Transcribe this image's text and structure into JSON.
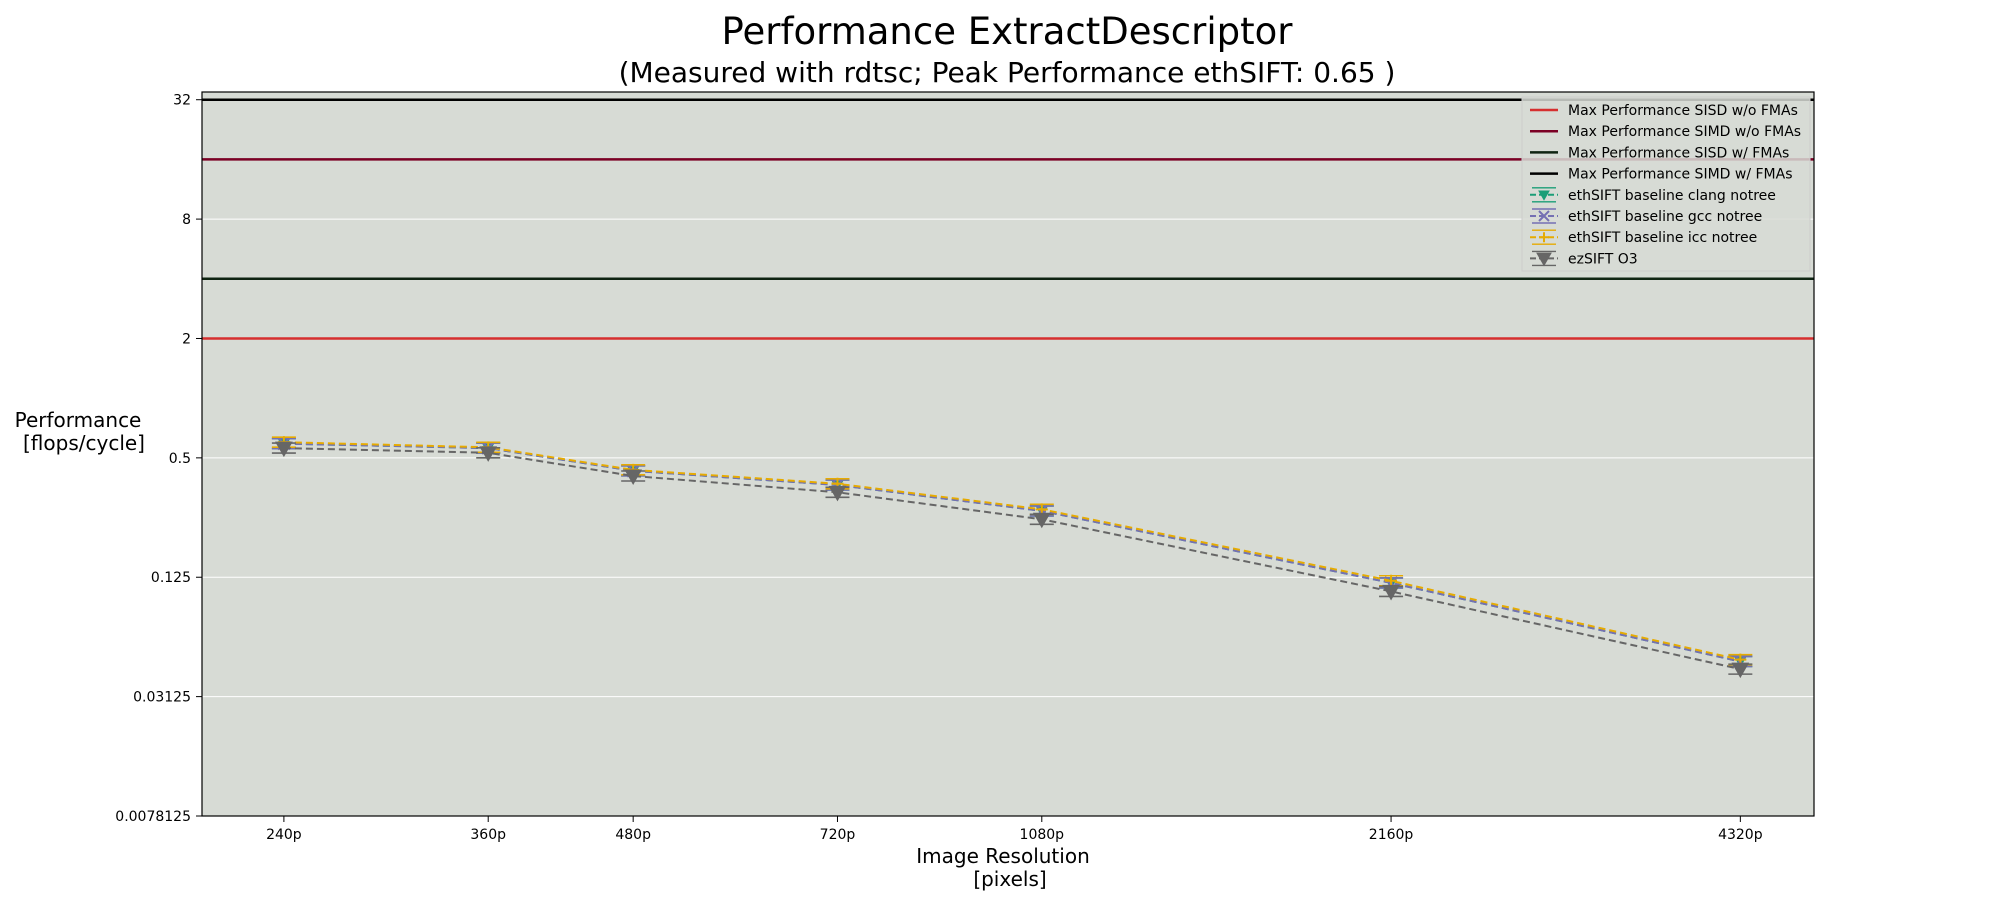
{
  "chart_data": {
    "type": "line",
    "title": "Performance ExtractDescriptor",
    "subtitle": "(Measured with rdtsc; Peak Performance ethSIFT: 0.65 )",
    "xlabel_line1": "Image Resolution",
    "xlabel_line2": "[pixels]",
    "ylabel_line1": "Performance",
    "ylabel_line2": "[flops/cycle]",
    "y_scale": "log2",
    "ylim": [
      0.0078125,
      35
    ],
    "y_ticks": [
      32,
      8,
      2,
      0.5,
      0.125,
      0.03125,
      0.0078125
    ],
    "y_tick_labels": [
      "32",
      "8",
      "2",
      "0.5",
      "0.125",
      "0.03125",
      "0.0078125"
    ],
    "x_scale": "log2",
    "xlim": [
      204,
      5000
    ],
    "categories": [
      "240p",
      "360p",
      "480p",
      "720p",
      "1080p",
      "2160p",
      "4320p"
    ],
    "x": [
      240,
      360,
      480,
      720,
      1080,
      2160,
      4320
    ],
    "grid": "horizontal",
    "legend_position": "top-right",
    "background": "#d7dbd5",
    "hlines": [
      {
        "name": "Max Performance SISD w/o FMAs",
        "value": 2,
        "color": "#d62f2f"
      },
      {
        "name": "Max Performance SIMD w/o FMAs",
        "value": 16,
        "color": "#7b0025"
      },
      {
        "name": "Max Performance SISD w/ FMAs",
        "value": 4,
        "color": "#0f2412"
      },
      {
        "name": "Max Performance SIMD w/ FMAs",
        "value": 32,
        "color": "#000000"
      }
    ],
    "series": [
      {
        "name": "ethSIFT baseline clang notree",
        "color": "#1b9e77",
        "marker": "triangle-down-small",
        "values": [
          0.59,
          0.56,
          0.43,
          0.365,
          0.27,
          0.117,
          0.047
        ]
      },
      {
        "name": "ethSIFT baseline gcc notree",
        "color": "#7570b3",
        "marker": "x",
        "values": [
          0.59,
          0.56,
          0.43,
          0.365,
          0.27,
          0.117,
          0.047
        ]
      },
      {
        "name": "ethSIFT baseline icc notree",
        "color": "#e6ab02",
        "marker": "plus",
        "values": [
          0.6,
          0.565,
          0.435,
          0.37,
          0.275,
          0.12,
          0.048
        ]
      },
      {
        "name": "ezSIFT O3",
        "color": "#666666",
        "marker": "triangle-down",
        "values": [
          0.56,
          0.53,
          0.405,
          0.335,
          0.245,
          0.106,
          0.043
        ]
      }
    ]
  }
}
